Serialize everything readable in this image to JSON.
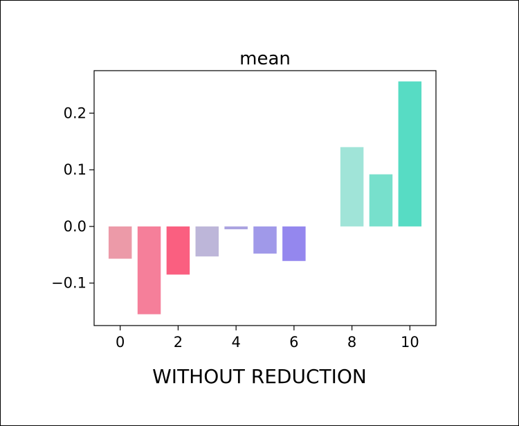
{
  "chart_data": {
    "type": "bar",
    "title": "mean",
    "xlabel": "WITHOUT REDUCTION",
    "ylabel": "",
    "x": [
      0,
      1,
      2,
      3,
      4,
      5,
      6,
      8,
      9,
      10
    ],
    "values": [
      -0.057,
      -0.155,
      -0.085,
      -0.053,
      -0.005,
      -0.048,
      -0.061,
      0.14,
      0.092,
      0.256
    ],
    "colors": [
      "#ec9aa8",
      "#f57f9a",
      "#fa5f80",
      "#bdb6d9",
      "#aba3e0",
      "#a099e9",
      "#9487ee",
      "#a0e4d8",
      "#77e0cc",
      "#57dcc4"
    ],
    "xlim": [
      -0.9,
      10.9
    ],
    "ylim": [
      -0.175,
      0.275
    ],
    "xticks": [
      0,
      2,
      4,
      6,
      8,
      10
    ],
    "xtick_labels": [
      "0",
      "2",
      "4",
      "6",
      "8",
      "10"
    ],
    "yticks": [
      -0.1,
      0.0,
      0.1,
      0.2
    ],
    "ytick_labels": [
      "−0.1",
      "0.0",
      "0.1",
      "0.2"
    ],
    "grid": false,
    "legend": "none"
  }
}
